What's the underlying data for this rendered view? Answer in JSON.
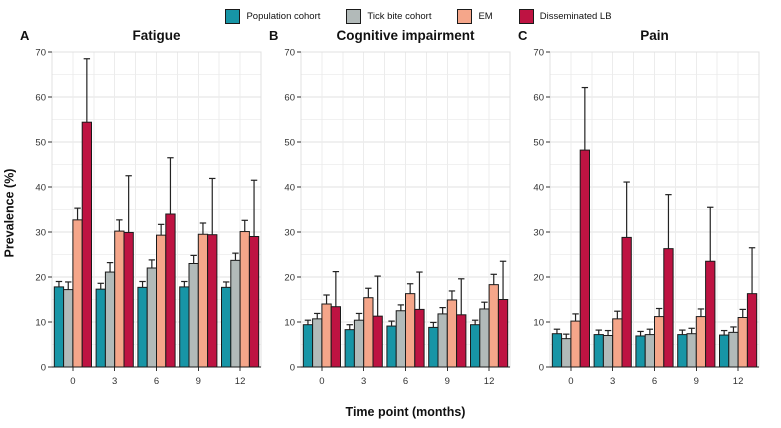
{
  "labels": {
    "y": "Prevalence (%)",
    "x": "Time point (months)"
  },
  "legend": {
    "items": [
      {
        "label": "Population cohort",
        "color": "#1795A6"
      },
      {
        "label": "Tick bite cohort",
        "color": "#B2BAB9"
      },
      {
        "label": "EM",
        "color": "#F5A68A"
      },
      {
        "label": "Disseminated LB",
        "color": "#BE1342"
      }
    ]
  },
  "axis": {
    "ylim": [
      0,
      70
    ],
    "y_ticks": [
      0,
      10,
      20,
      30,
      40,
      50,
      60,
      70
    ],
    "y_minor_step": 5,
    "grid": true
  },
  "chart_data": [
    {
      "type": "bar",
      "panel_label": "A",
      "title": "Fatigue",
      "categories": [
        "0",
        "3",
        "6",
        "9",
        "12"
      ],
      "ylim": [
        0,
        70
      ],
      "series": [
        {
          "name": "Population cohort",
          "values": [
            17.8,
            17.3,
            17.7,
            17.8,
            17.7
          ],
          "upper": [
            19.0,
            18.6,
            19.0,
            19.0,
            18.9
          ]
        },
        {
          "name": "Tick bite cohort",
          "values": [
            17.2,
            21.1,
            22.0,
            23.0,
            23.7
          ],
          "upper": [
            18.9,
            23.2,
            23.8,
            24.8,
            25.3
          ]
        },
        {
          "name": "EM",
          "values": [
            32.7,
            30.2,
            29.3,
            29.5,
            30.1
          ],
          "upper": [
            35.3,
            32.7,
            31.7,
            32.0,
            32.6
          ]
        },
        {
          "name": "Disseminated LB",
          "values": [
            54.4,
            29.9,
            34.0,
            29.4,
            29.0
          ],
          "upper": [
            68.5,
            42.5,
            46.5,
            41.9,
            41.5
          ]
        }
      ]
    },
    {
      "type": "bar",
      "panel_label": "B",
      "title": "Cognitive impairment",
      "categories": [
        "0",
        "3",
        "6",
        "9",
        "12"
      ],
      "ylim": [
        0,
        70
      ],
      "series": [
        {
          "name": "Population cohort",
          "values": [
            9.4,
            8.3,
            9.1,
            8.8,
            9.4
          ],
          "upper": [
            10.4,
            9.4,
            10.2,
            9.9,
            10.4
          ]
        },
        {
          "name": "Tick bite cohort",
          "values": [
            10.7,
            10.4,
            12.5,
            11.8,
            12.9
          ],
          "upper": [
            11.9,
            11.9,
            13.8,
            13.2,
            14.4
          ]
        },
        {
          "name": "EM",
          "values": [
            14.0,
            15.4,
            16.3,
            14.9,
            18.3
          ],
          "upper": [
            16.0,
            17.5,
            18.5,
            16.9,
            20.6
          ]
        },
        {
          "name": "Disseminated LB",
          "values": [
            13.4,
            11.3,
            12.8,
            11.6,
            15.0
          ],
          "upper": [
            21.2,
            20.2,
            21.1,
            19.6,
            23.5
          ]
        }
      ]
    },
    {
      "type": "bar",
      "panel_label": "C",
      "title": "Pain",
      "categories": [
        "0",
        "3",
        "6",
        "9",
        "12"
      ],
      "ylim": [
        0,
        70
      ],
      "series": [
        {
          "name": "Population cohort",
          "values": [
            7.4,
            7.2,
            6.9,
            7.2,
            7.1
          ],
          "upper": [
            8.4,
            8.2,
            7.9,
            8.2,
            8.1
          ]
        },
        {
          "name": "Tick bite cohort",
          "values": [
            6.3,
            7.0,
            7.2,
            7.4,
            7.7
          ],
          "upper": [
            7.3,
            8.1,
            8.4,
            8.6,
            8.9
          ]
        },
        {
          "name": "EM",
          "values": [
            10.2,
            10.7,
            11.2,
            11.2,
            11.0
          ],
          "upper": [
            11.8,
            12.4,
            13.0,
            12.9,
            12.8
          ]
        },
        {
          "name": "Disseminated LB",
          "values": [
            48.2,
            28.8,
            26.3,
            23.5,
            16.3
          ],
          "upper": [
            62.1,
            41.1,
            38.3,
            35.5,
            26.5
          ]
        }
      ]
    }
  ]
}
